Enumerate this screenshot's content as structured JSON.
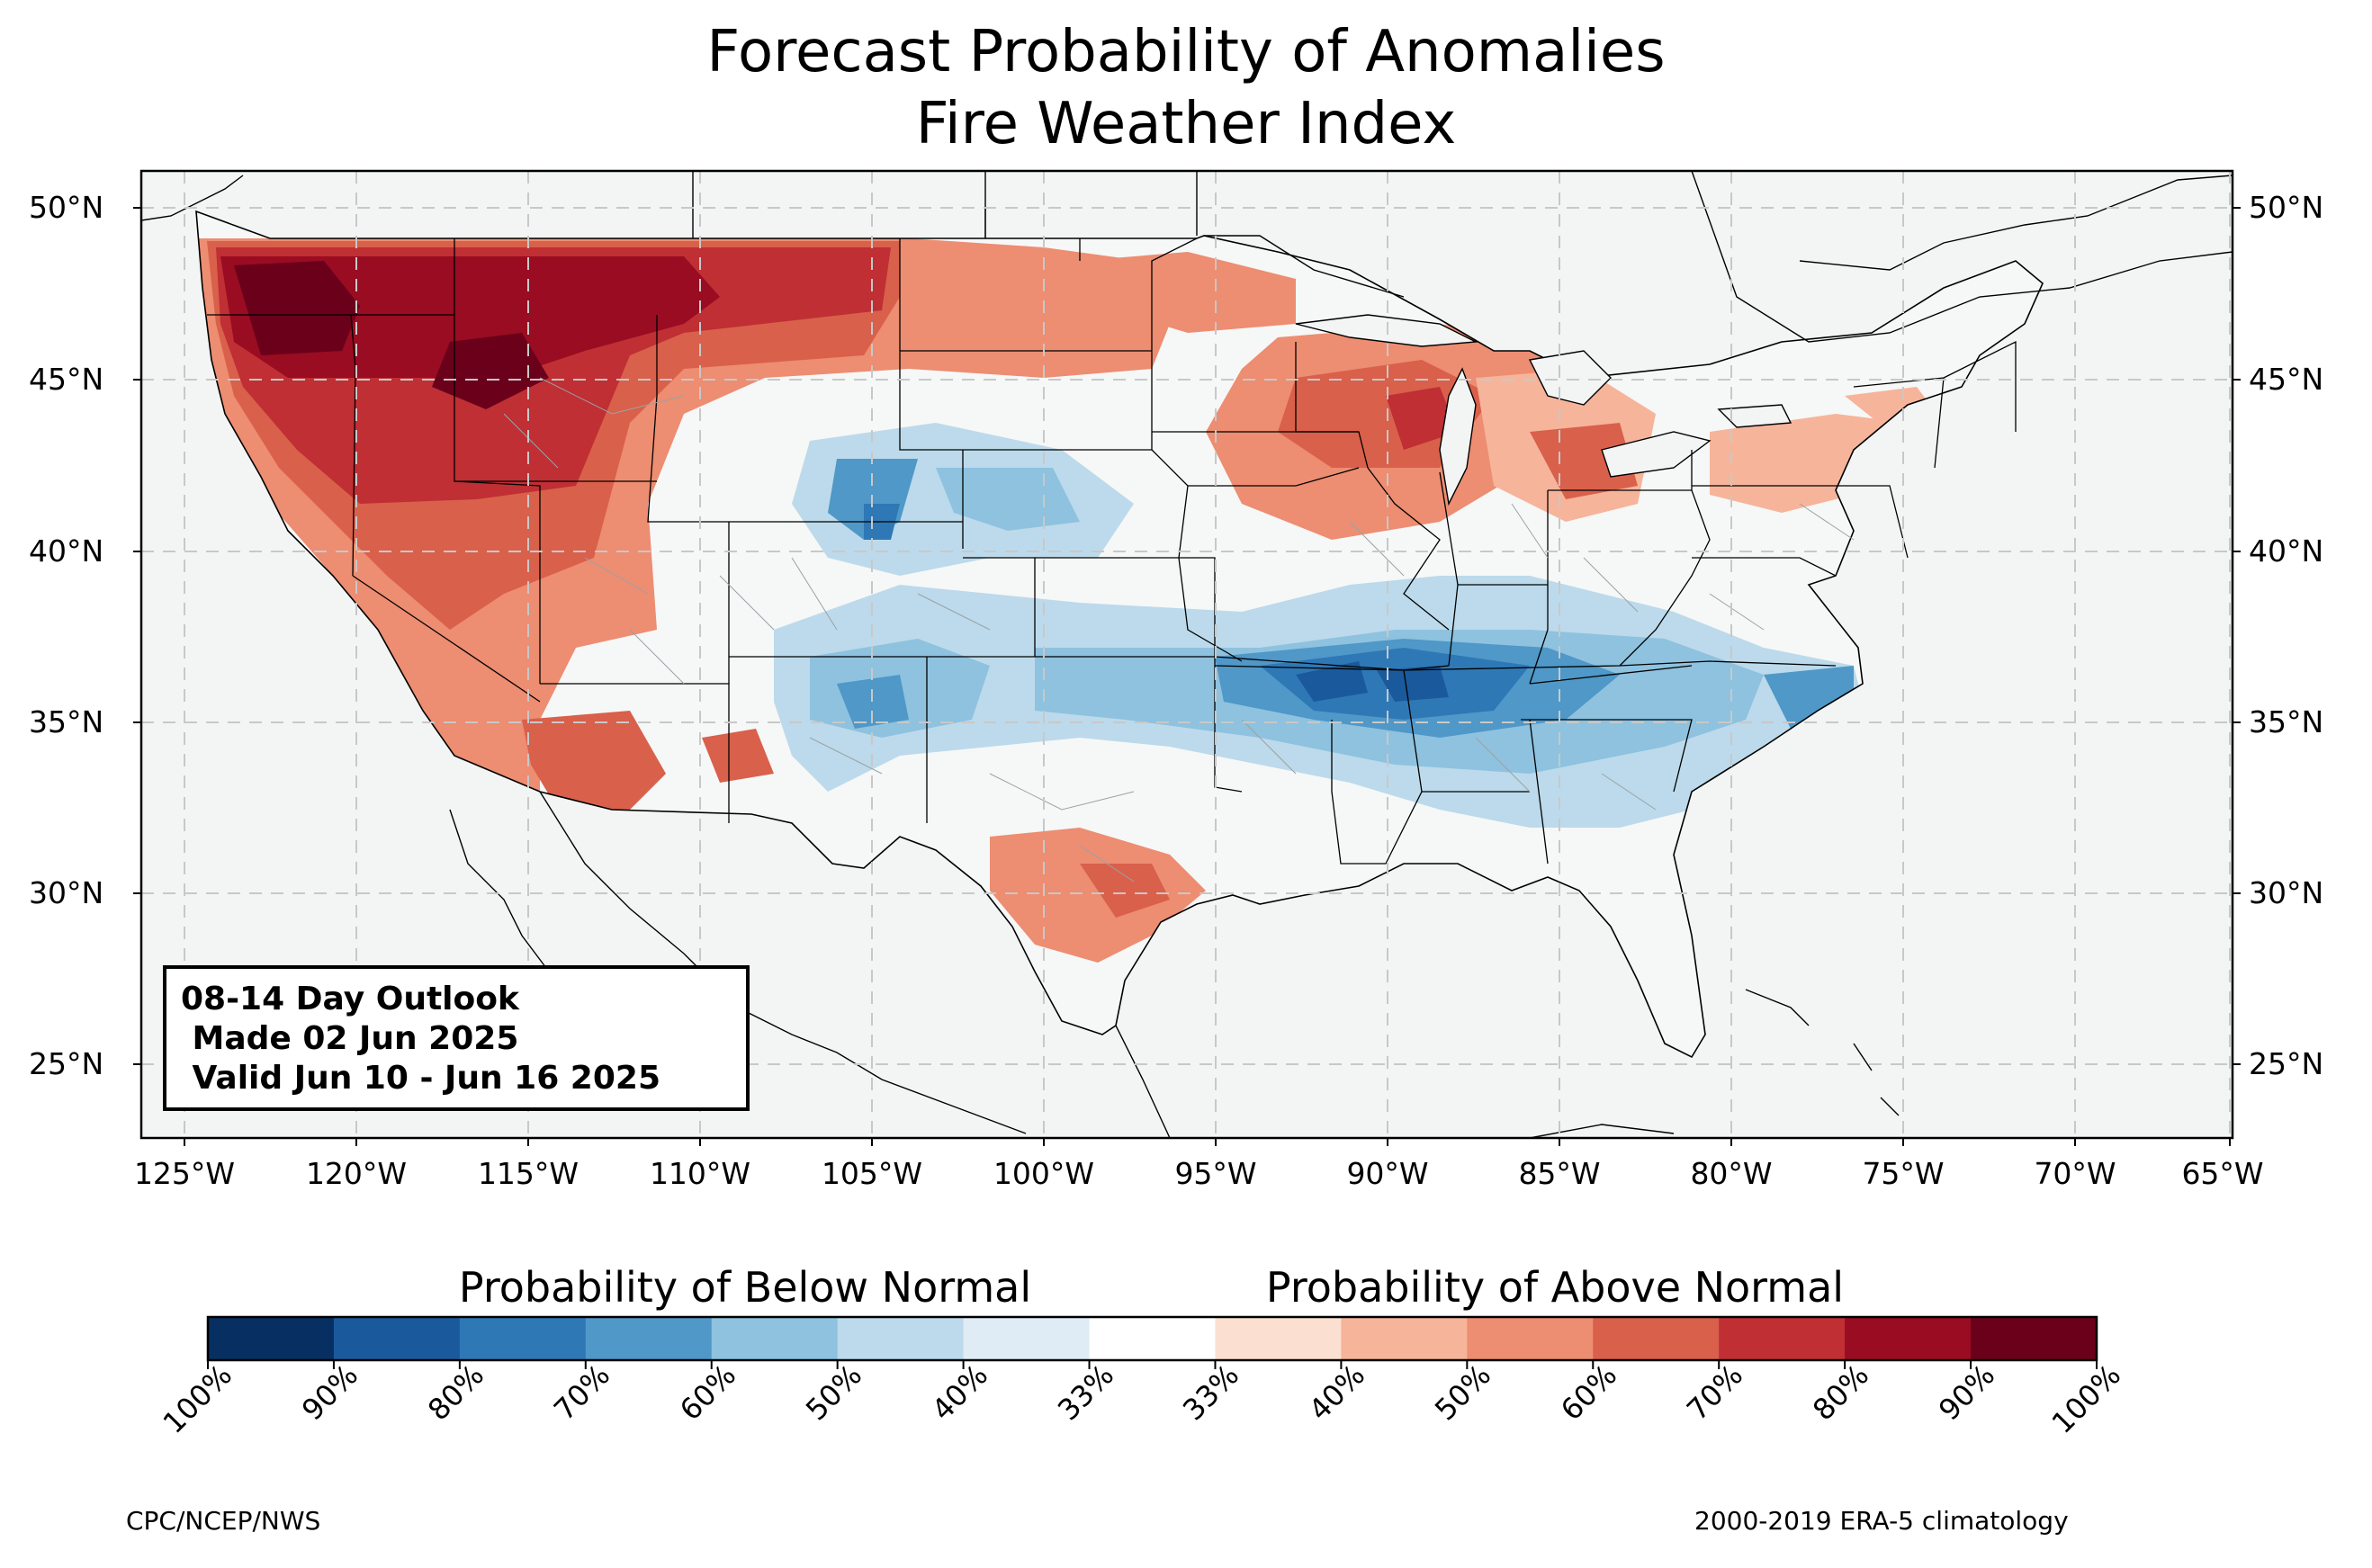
{
  "title": [
    "Forecast Probability of Anomalies",
    "Fire Weather Index"
  ],
  "info_box": {
    "line1": "08-14 Day Outlook",
    "line2": " Made 02 Jun 2025",
    "line3": " Valid Jun 10 - Jun 16 2025"
  },
  "latitude_labels": [
    "50°N",
    "45°N",
    "40°N",
    "35°N",
    "30°N",
    "25°N"
  ],
  "longitude_labels": [
    "125°W",
    "120°W",
    "115°W",
    "110°W",
    "105°W",
    "100°W",
    "95°W",
    "90°W",
    "85°W",
    "80°W",
    "75°W",
    "70°W",
    "65°W"
  ],
  "colorbar": {
    "below_label": "Probability of Below Normal",
    "above_label": "Probability of Above Normal",
    "ticks": [
      "100%",
      "90%",
      "80%",
      "70%",
      "60%",
      "50%",
      "40%",
      "33%",
      "33%",
      "40%",
      "50%",
      "60%",
      "70%",
      "80%",
      "90%",
      "100%"
    ],
    "colors": [
      "#072f61",
      "#1a5a9c",
      "#2f78b6",
      "#4f98c8",
      "#8ec2df",
      "#bcdaeb",
      "#e0ecf5",
      "#ffffff",
      "#fbe0d1",
      "#f6b49b",
      "#ed8d71",
      "#d9604b",
      "#bf2f34",
      "#990c21",
      "#6b001a"
    ]
  },
  "footer": {
    "left": "CPC/NCEP/NWS",
    "right": "2000-2019 ERA-5 climatology"
  }
}
